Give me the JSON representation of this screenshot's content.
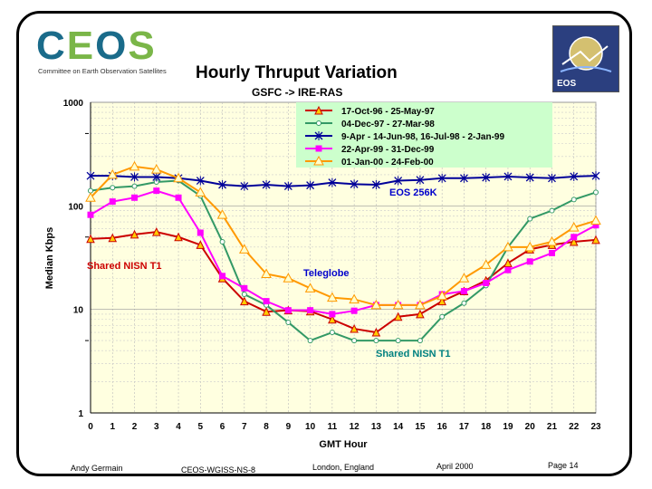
{
  "header": {
    "logo_text": "CEOS",
    "logo_subtitle": "Committee on Earth Observation Satellites",
    "title": "Hourly Thruput Variation",
    "subtitle": "GSFC -> IRE-RAS",
    "eos_logo_text": "EOS"
  },
  "footer": {
    "author": "Andy Germain",
    "doc_id": "CEOS-WGISS-NS-8",
    "location": "London, England",
    "date": "April 2000",
    "page": "Page 14"
  },
  "colors": {
    "plot_bg": "#ffffe0",
    "legend_bg": "#ccffcc",
    "red": "#cc0000",
    "green": "#339966",
    "blue": "#000099",
    "magenta": "#ff00ff",
    "orange": "#ff9900",
    "annotation_red": "#cc0000",
    "annotation_blue": "#0000cc",
    "annotation_teal": "#008080"
  },
  "chart_data": {
    "type": "line",
    "xlabel": "GMT Hour",
    "ylabel": "Median Kbps",
    "yscale": "log",
    "ylim": [
      1,
      1000
    ],
    "xlim": [
      0,
      23
    ],
    "x": [
      0,
      1,
      2,
      3,
      4,
      5,
      6,
      7,
      8,
      9,
      10,
      11,
      12,
      13,
      14,
      15,
      16,
      17,
      18,
      19,
      20,
      21,
      22,
      23
    ],
    "x_ticks": [
      "0",
      "1",
      "2",
      "3",
      "4",
      "5",
      "6",
      "7",
      "8",
      "9",
      "10",
      "11",
      "12",
      "13",
      "14",
      "15",
      "16",
      "17",
      "18",
      "19",
      "20",
      "21",
      "22",
      "23"
    ],
    "y_ticks": [
      {
        "value": 1,
        "label": "1"
      },
      {
        "value": 10,
        "label": "10"
      },
      {
        "value": 100,
        "label": "100"
      },
      {
        "value": 1000,
        "label": "1000"
      }
    ],
    "series": [
      {
        "name": "17-Oct-96 - 25-May-97",
        "color": "#cc0000",
        "marker": "triangle",
        "values": [
          48,
          49,
          53,
          56,
          50,
          42,
          20,
          12,
          9.5,
          9.8,
          9.6,
          8,
          6.5,
          6,
          8.5,
          9,
          12,
          15,
          19,
          28,
          38,
          42,
          45,
          47
        ]
      },
      {
        "name": "04-Dec-97 - 27-Mar-98",
        "color": "#339966",
        "marker": "circle",
        "values": [
          140,
          150,
          155,
          170,
          175,
          125,
          45,
          14,
          11,
          7.5,
          5,
          6,
          5,
          5,
          5,
          5,
          8.5,
          11.5,
          17,
          40,
          75,
          90,
          115,
          135
        ]
      },
      {
        "name": "9-Apr - 14-Jun-98, 16-Jul-98 - 2-Jan-99",
        "color": "#000099",
        "marker": "x",
        "values": [
          195,
          195,
          190,
          190,
          185,
          175,
          160,
          155,
          160,
          155,
          158,
          168,
          162,
          160,
          175,
          178,
          185,
          185,
          188,
          192,
          188,
          185,
          192,
          195
        ]
      },
      {
        "name": "22-Apr-99 - 31-Dec-99",
        "color": "#ff00ff",
        "marker": "square",
        "values": [
          82,
          110,
          120,
          140,
          120,
          55,
          21,
          16,
          12,
          9.8,
          9.8,
          9,
          9.7,
          11,
          11,
          11,
          14,
          15,
          18,
          24,
          29,
          35,
          50,
          65
        ]
      },
      {
        "name": "01-Jan-00 - 24-Feb-00",
        "color": "#ff9900",
        "marker": "triangle-open",
        "values": [
          120,
          200,
          240,
          225,
          185,
          135,
          82,
          38,
          22,
          20,
          16,
          13,
          12.5,
          11,
          11,
          11,
          13.5,
          20,
          27,
          40,
          40,
          45,
          62,
          72
        ]
      }
    ],
    "annotations": [
      {
        "text": "EOS 256K",
        "color": "#0000cc"
      },
      {
        "text": "Shared NISN T1",
        "color": "#cc0000"
      },
      {
        "text": "Teleglobe",
        "color": "#0000cc"
      },
      {
        "text": "Shared NISN T1",
        "color": "#008080"
      }
    ]
  }
}
